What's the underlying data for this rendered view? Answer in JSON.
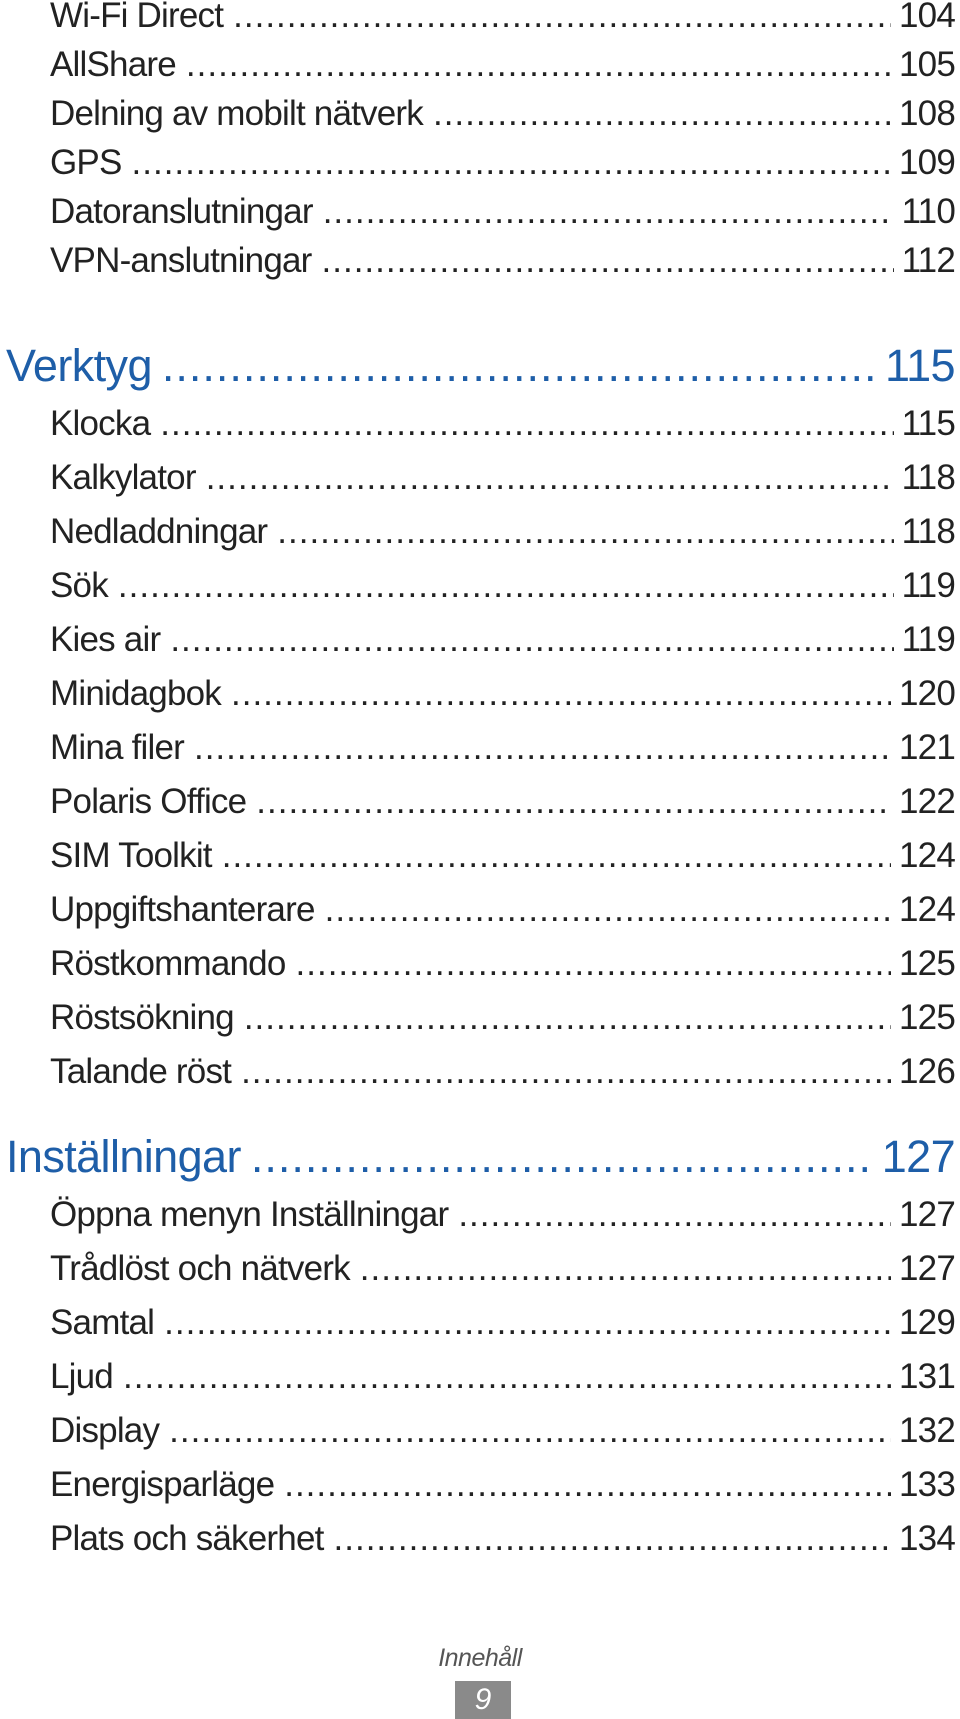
{
  "sections": [
    {
      "items": [
        {
          "title": "Wi-Fi Direct",
          "page": "104"
        },
        {
          "title": "AllShare",
          "page": "105"
        },
        {
          "title": "Delning av mobilt nätverk",
          "page": "108"
        },
        {
          "title": "GPS",
          "page": "109"
        },
        {
          "title": "Datoranslutningar",
          "page": "110"
        },
        {
          "title": "VPN-anslutningar",
          "page": "112"
        }
      ]
    },
    {
      "heading": {
        "title": "Verktyg",
        "page": "115"
      },
      "items": [
        {
          "title": "Klocka",
          "page": "115"
        },
        {
          "title": "Kalkylator",
          "page": "118"
        },
        {
          "title": "Nedladdningar",
          "page": "118"
        },
        {
          "title": "Sök",
          "page": "119"
        },
        {
          "title": "Kies air",
          "page": "119"
        },
        {
          "title": "Minidagbok",
          "page": "120"
        },
        {
          "title": "Mina filer",
          "page": "121"
        },
        {
          "title": "Polaris Office",
          "page": "122"
        },
        {
          "title": "SIM Toolkit",
          "page": "124"
        },
        {
          "title": "Uppgiftshanterare",
          "page": "124"
        },
        {
          "title": "Röstkommando",
          "page": "125"
        },
        {
          "title": "Röstsökning",
          "page": "125"
        },
        {
          "title": "Talande röst",
          "page": "126"
        }
      ]
    },
    {
      "heading": {
        "title": "Inställningar",
        "page": "127"
      },
      "items": [
        {
          "title": "Öppna menyn Inställningar",
          "page": "127"
        },
        {
          "title": "Trådlöst och nätverk",
          "page": "127"
        },
        {
          "title": "Samtal",
          "page": "129"
        },
        {
          "title": "Ljud",
          "page": "131"
        },
        {
          "title": "Display",
          "page": "132"
        },
        {
          "title": "Energisparläge",
          "page": "133"
        },
        {
          "title": "Plats och säkerhet",
          "page": "134"
        }
      ]
    }
  ],
  "footer": {
    "label": "Innehåll",
    "page_number": "9"
  }
}
